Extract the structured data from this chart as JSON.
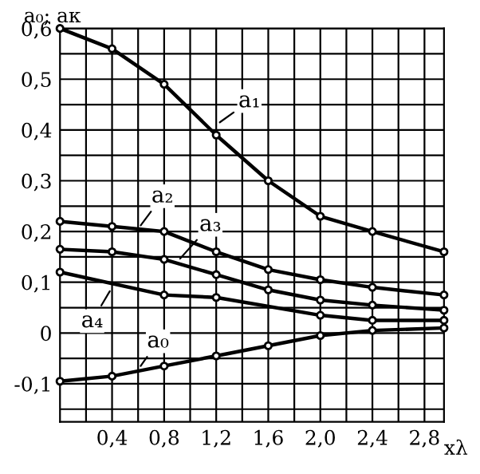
{
  "chart_data": {
    "type": "line",
    "ylabel": "a₀; aк",
    "xlabel": "xλ",
    "xlim": [
      0,
      2.95
    ],
    "ylim": [
      -0.175,
      0.6
    ],
    "xticks": [
      {
        "value": 0.2,
        "label": null
      },
      {
        "value": 0.4,
        "label": "0,4"
      },
      {
        "value": 0.6,
        "label": null
      },
      {
        "value": 0.8,
        "label": "0,8"
      },
      {
        "value": 1.0,
        "label": null
      },
      {
        "value": 1.2,
        "label": "1,2"
      },
      {
        "value": 1.4,
        "label": null
      },
      {
        "value": 1.6,
        "label": "1,6"
      },
      {
        "value": 1.8,
        "label": null
      },
      {
        "value": 2.0,
        "label": "2,0"
      },
      {
        "value": 2.2,
        "label": null
      },
      {
        "value": 2.4,
        "label": "2,4"
      },
      {
        "value": 2.6,
        "label": null
      },
      {
        "value": 2.8,
        "label": "2,8"
      }
    ],
    "yticks": [
      {
        "value": -0.15,
        "label": null
      },
      {
        "value": -0.1,
        "label": "-0,1"
      },
      {
        "value": -0.05,
        "label": null
      },
      {
        "value": 0,
        "label": "0"
      },
      {
        "value": 0.05,
        "label": null
      },
      {
        "value": 0.1,
        "label": "0,1"
      },
      {
        "value": 0.15,
        "label": null
      },
      {
        "value": 0.2,
        "label": "0,2"
      },
      {
        "value": 0.25,
        "label": null
      },
      {
        "value": 0.3,
        "label": "0,3"
      },
      {
        "value": 0.35,
        "label": null
      },
      {
        "value": 0.4,
        "label": "0,4"
      },
      {
        "value": 0.45,
        "label": null
      },
      {
        "value": 0.5,
        "label": "0,5"
      },
      {
        "value": 0.55,
        "label": null
      },
      {
        "value": 0.6,
        "label": "0,6"
      }
    ],
    "grid": true,
    "marker": "circle",
    "series": [
      {
        "color": "#000000",
        "x": [
          0,
          0.4,
          0.8,
          1.2,
          1.6,
          2.0,
          2.4,
          2.95
        ],
        "values": [
          0.6,
          0.56,
          0.49,
          0.39,
          0.3,
          0.23,
          0.2,
          0.16
        ]
      },
      {
        "color": "#000000",
        "x": [
          0,
          0.4,
          0.8,
          1.2,
          1.6,
          2.0,
          2.4,
          2.95
        ],
        "values": [
          0.22,
          0.21,
          0.2,
          0.16,
          0.125,
          0.105,
          0.09,
          0.075
        ]
      },
      {
        "color": "#000000",
        "x": [
          0,
          0.4,
          0.8,
          1.2,
          1.6,
          2.0,
          2.4,
          2.95
        ],
        "values": [
          0.165,
          0.16,
          0.145,
          0.115,
          0.085,
          0.065,
          0.055,
          0.045
        ]
      },
      {
        "color": "#000000",
        "x": [
          0,
          0.8,
          1.2,
          2.0,
          2.4,
          2.95
        ],
        "values": [
          0.12,
          0.075,
          0.07,
          0.035,
          0.025,
          0.025
        ]
      },
      {
        "color": "#000000",
        "x": [
          0,
          0.4,
          0.8,
          1.2,
          1.6,
          2.0,
          2.4,
          2.95
        ],
        "values": [
          -0.095,
          -0.085,
          -0.065,
          -0.045,
          -0.025,
          -0.005,
          0.005,
          0.01
        ]
      }
    ],
    "annotations": [
      {
        "text": "a₁",
        "x": 1.2,
        "y": 0.41
      },
      {
        "text": "a₂",
        "x": 0.6,
        "y": 0.205
      },
      {
        "text": "a₃",
        "x": 0.9,
        "y": 0.14
      },
      {
        "text": "a₄",
        "x": 0.4,
        "y": 0.09
      },
      {
        "text": "a₀",
        "x": 0.6,
        "y": -0.072
      }
    ]
  }
}
